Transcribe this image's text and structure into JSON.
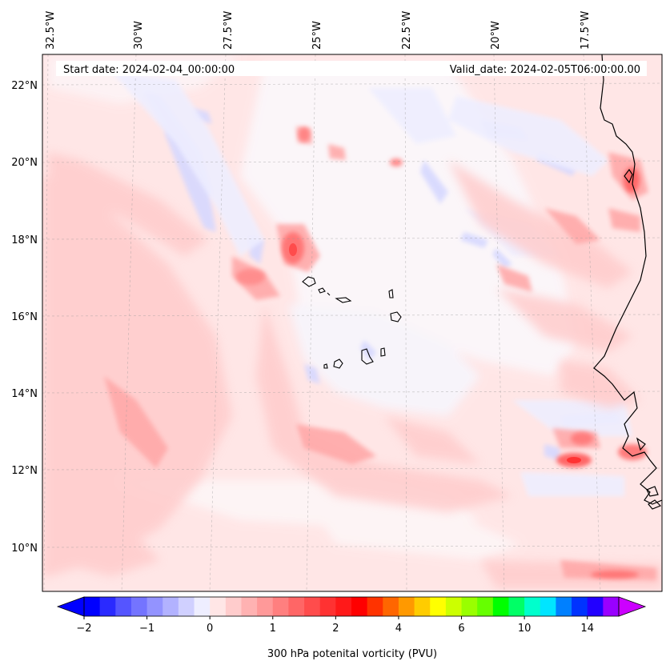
{
  "header": {
    "start_date": "Start date: 2024-02-04_00:00:00",
    "valid_date": "Valid_date: 2024-02-05T06:00:00.00"
  },
  "map": {
    "longitude_labels": [
      "32.5°W",
      "30°W",
      "27.5°W",
      "25°W",
      "22.5°W",
      "20°W",
      "17.5°W"
    ],
    "latitude_labels": [
      "22°N",
      "20°N",
      "18°N",
      "16°N",
      "14°N",
      "12°N",
      "10°N"
    ],
    "lon_range": [
      -33,
      -15.5
    ],
    "lat_range": [
      8.9,
      22.8
    ],
    "gridlines": true,
    "coastlines": true
  },
  "colorbar": {
    "label": "300 hPa potenital vorticity (PVU)",
    "tick_labels": [
      "−2",
      "−1",
      "0",
      "1",
      "2",
      "4",
      "6",
      "10",
      "14"
    ],
    "colors": [
      "#0000ff",
      "#2a2aff",
      "#5555ff",
      "#7474ff",
      "#9393ff",
      "#b2b2ff",
      "#d0d0ff",
      "#eeeeff",
      "#ffe6e6",
      "#ffcccc",
      "#ffb2b2",
      "#ff9999",
      "#ff7f7f",
      "#ff6666",
      "#ff4c4c",
      "#ff3232",
      "#ff1919",
      "#ff0000",
      "#ff3300",
      "#ff6600",
      "#ff9900",
      "#ffcc00",
      "#ffff00",
      "#ccff00",
      "#99ff00",
      "#66ff00",
      "#00ff00",
      "#00ff66",
      "#00ffcc",
      "#00e5ff",
      "#0080ff",
      "#0033ff",
      "#2200ff",
      "#9900ff"
    ],
    "extend": "both",
    "extend_min_color": "#0000ff",
    "extend_max_color": "#cc00ff"
  }
}
